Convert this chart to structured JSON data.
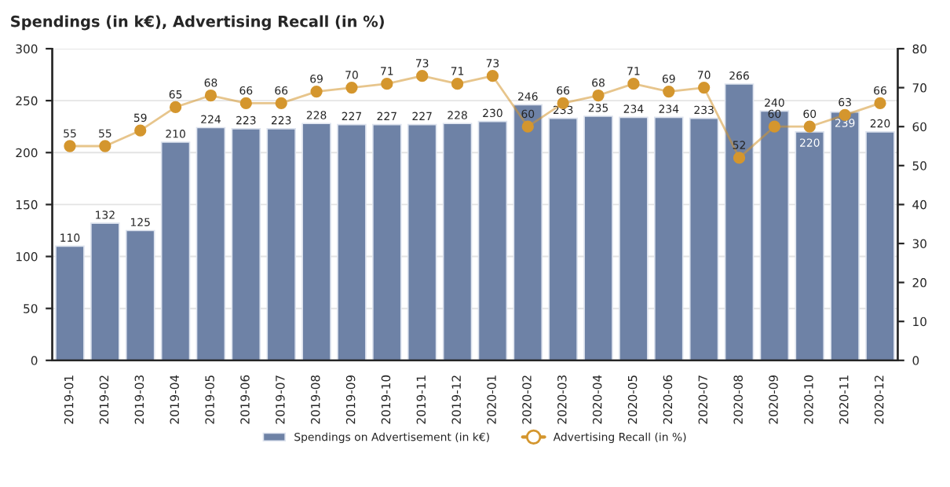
{
  "chart_data": {
    "type": "bar",
    "title": "Spendings (in k€), Advertising Recall (in %)",
    "categories": [
      "2019-01",
      "2019-02",
      "2019-03",
      "2019-04",
      "2019-05",
      "2019-06",
      "2019-07",
      "2019-08",
      "2019-09",
      "2019-10",
      "2019-11",
      "2019-12",
      "2020-01",
      "2020-02",
      "2020-03",
      "2020-04",
      "2020-05",
      "2020-06",
      "2020-07",
      "2020-08",
      "2020-09",
      "2020-10",
      "2020-11",
      "2020-12"
    ],
    "series": [
      {
        "name": "Spendings on Advertisement (in k€)",
        "color": "#6e82a6",
        "values": [
          110,
          132,
          125,
          210,
          224,
          223,
          223,
          228,
          227,
          227,
          227,
          228,
          230,
          246,
          233,
          235,
          234,
          234,
          233,
          266,
          240,
          220,
          239,
          220
        ]
      },
      {
        "name": "Advertising Recall (in %)",
        "type": "line",
        "axis": "y2",
        "color": "#d4962e",
        "marker": "circle",
        "values": [
          55,
          55,
          59,
          65,
          68,
          66,
          66,
          69,
          70,
          71,
          73,
          71,
          73,
          60,
          66,
          68,
          71,
          69,
          70,
          52,
          60,
          60,
          63,
          66
        ]
      }
    ],
    "ylim": [
      0,
      300
    ],
    "yticks": [
      0,
      50,
      100,
      150,
      200,
      250,
      300
    ],
    "y2lim": [
      0,
      80
    ],
    "y2ticks": [
      0,
      10,
      20,
      30,
      40,
      50,
      60,
      70,
      80
    ],
    "data_labels": true,
    "grid": "y",
    "legend": "bottom"
  }
}
